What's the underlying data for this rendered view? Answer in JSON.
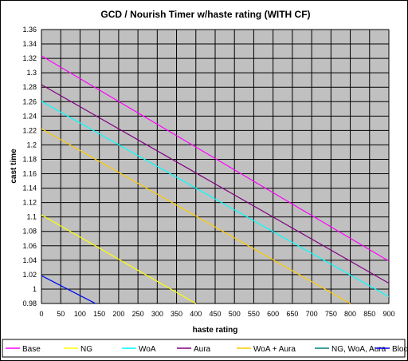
{
  "chart_data": {
    "type": "line",
    "title": "GCD / Nourish Timer w/haste rating (WITH CF)",
    "xlabel": "haste rating",
    "ylabel": "cast time",
    "xlim": [
      0,
      900
    ],
    "ylim": [
      0.98,
      1.36
    ],
    "xticks": [
      "0",
      "50",
      "100",
      "150",
      "200",
      "250",
      "300",
      "350",
      "400",
      "450",
      "500",
      "550",
      "600",
      "650",
      "700",
      "750",
      "800",
      "850",
      "900"
    ],
    "yticks": [
      "0.98",
      "1",
      "1.02",
      "1.04",
      "1.06",
      "1.08",
      "1.1",
      "1.12",
      "1.14",
      "1.16",
      "1.18",
      "1.2",
      "1.22",
      "1.24",
      "1.26",
      "1.28",
      "1.3",
      "1.32",
      "1.34",
      "1.36"
    ],
    "grid": true,
    "legend_position": "bottom",
    "plot_background": "#c0c0c0",
    "series": [
      {
        "name": "Base",
        "color": "#ff00ff",
        "points": [
          [
            0,
            1.3235
          ],
          [
            900,
            1.0388
          ]
        ]
      },
      {
        "name": "NG",
        "color": "#ffff00",
        "points": [
          [
            0,
            1.1029
          ],
          [
            400,
            0.98
          ]
        ]
      },
      {
        "name": "WoA",
        "color": "#00ffff",
        "points": [
          [
            0,
            1.2605
          ],
          [
            900,
            0.9894
          ]
        ]
      },
      {
        "name": "Aura",
        "color": "#800080",
        "points": [
          [
            0,
            1.2836
          ],
          [
            900,
            1.0081
          ]
        ]
      },
      {
        "name": "WoA + Aura",
        "color": "#ffcc00",
        "points": [
          [
            0,
            1.2225
          ],
          [
            800,
            0.98
          ]
        ]
      },
      {
        "name": "NG, WoA, Aura",
        "color": "#008080",
        "points": [
          [
            0,
            1.0187
          ],
          [
            140,
            0.98
          ]
        ]
      },
      {
        "name": "Bloodlust",
        "color": "#0000ff",
        "points": [
          [
            0,
            1.0187
          ],
          [
            140,
            0.98
          ]
        ]
      }
    ]
  }
}
